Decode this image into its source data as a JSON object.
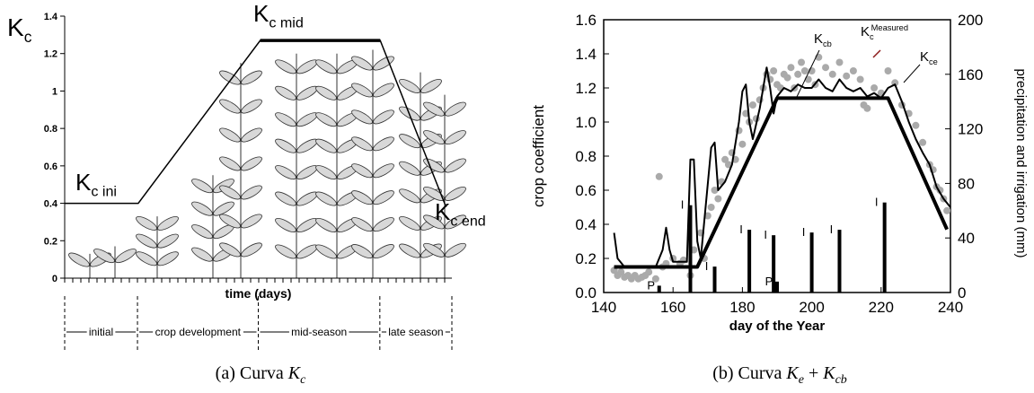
{
  "chart_data": [
    {
      "type": "line",
      "ylabel": {
        "main": "K",
        "sub": "c"
      },
      "xlabel": "time (days)",
      "xlim": [
        0,
        100
      ],
      "ylim": [
        0,
        1.4
      ],
      "yticks": [
        0,
        0.2,
        0.4,
        0.6,
        0.8,
        1,
        1.2,
        1.4
      ],
      "series": [
        {
          "color": "#000000",
          "x": [
            0,
            19,
            50.5,
            81.5,
            98.5
          ],
          "values": [
            0.4,
            0.4,
            1.27,
            1.27,
            0.38
          ]
        }
      ],
      "annotations": [
        {
          "main": "K",
          "sub": "c ini"
        },
        {
          "main": "K",
          "sub": "c mid"
        },
        {
          "main": "K",
          "sub": "c end"
        }
      ],
      "stage_bounds": [
        0,
        18.8,
        50,
        81.4,
        100
      ],
      "stages": [
        "initial",
        "crop development",
        "mid-season",
        "late season"
      ],
      "caption": {
        "prefix": "(a) Curva",
        "terms": [
          {
            "main": "K",
            "sub": "c"
          }
        ]
      }
    },
    {
      "type": "combo",
      "xlabel": "day of the Year",
      "ylabel": "crop coefficient",
      "y2label": "precipitation and irrigation (mm)",
      "xlim": [
        140,
        240
      ],
      "xticks": [
        140,
        160,
        180,
        200,
        220,
        240
      ],
      "ylim": [
        0,
        1.6
      ],
      "yticks": [
        {
          "value": 0,
          "label": "0.0"
        },
        0.2,
        0.4,
        0.6,
        0.8,
        {
          "value": 1,
          "label": "1.0"
        },
        1.2,
        1.4,
        1.6
      ],
      "y2lim": [
        0,
        200
      ],
      "y2ticks": [
        0,
        40,
        80,
        120,
        160,
        200
      ],
      "series": [
        {
          "type": "scatter",
          "color": "#aaaaaa",
          "x": [
            143,
            144,
            145,
            146,
            147,
            148,
            149,
            150,
            151,
            152,
            153,
            155,
            156,
            157,
            158,
            160,
            162,
            163,
            165,
            166,
            168,
            169,
            170,
            171,
            172,
            173,
            174,
            175,
            176,
            177,
            178,
            179,
            180,
            181,
            182,
            183,
            184,
            185,
            186,
            187,
            188,
            189,
            190,
            191,
            192,
            193,
            194,
            195,
            196,
            197,
            198,
            199,
            200,
            201,
            202,
            204,
            206,
            208,
            210,
            212,
            214,
            215,
            216,
            218,
            220,
            222,
            224,
            226,
            228,
            230,
            232,
            234,
            235,
            236,
            237,
            238,
            239
          ],
          "values": [
            0.13,
            0.1,
            0.12,
            0.09,
            0.1,
            0.08,
            0.1,
            0.08,
            0.09,
            0.1,
            0.12,
            0.08,
            0.68,
            0.15,
            0.17,
            0.2,
            0.17,
            0.19,
            0.1,
            0.25,
            0.35,
            0.2,
            0.45,
            0.5,
            0.6,
            0.55,
            0.65,
            0.78,
            0.75,
            0.82,
            0.78,
            0.95,
            0.87,
            1.05,
            1.0,
            1.1,
            1.02,
            1.13,
            1.2,
            1.28,
            1.25,
            1.3,
            1.22,
            1.2,
            1.28,
            1.26,
            1.32,
            1.2,
            1.28,
            1.35,
            1.3,
            1.25,
            1.3,
            1.22,
            1.38,
            1.32,
            1.28,
            1.35,
            1.27,
            1.3,
            1.25,
            1.1,
            1.08,
            1.2,
            1.17,
            1.3,
            1.23,
            1.1,
            1.05,
            0.98,
            0.88,
            0.75,
            0.72,
            0.62,
            0.6,
            0.55,
            0.48
          ]
        },
        {
          "type": "line",
          "color": "#000000",
          "width": 4,
          "x": [
            143,
            167,
            190,
            222,
            239
          ],
          "values": [
            0.15,
            0.15,
            1.14,
            1.14,
            0.37
          ]
        },
        {
          "type": "line",
          "color": "#000000",
          "width": 2,
          "x": [
            143,
            144,
            146,
            155,
            157,
            158,
            159,
            160,
            164,
            165,
            166,
            167,
            168,
            171,
            172,
            173,
            175,
            177,
            179,
            180,
            181,
            182,
            183,
            185,
            187,
            188,
            189,
            190,
            192,
            194,
            196,
            198,
            200,
            202,
            204,
            206,
            208,
            210,
            212,
            214,
            216,
            218,
            220,
            222,
            224,
            226,
            228,
            230,
            232,
            234,
            236,
            238,
            240
          ],
          "values": [
            0.35,
            0.2,
            0.15,
            0.15,
            0.25,
            0.38,
            0.25,
            0.18,
            0.18,
            0.78,
            0.78,
            0.3,
            0.2,
            0.85,
            0.88,
            0.6,
            0.65,
            0.75,
            1.0,
            1.18,
            1.22,
            1.0,
            0.9,
            1.08,
            1.32,
            1.2,
            1.05,
            1.15,
            1.2,
            1.18,
            1.22,
            1.2,
            1.2,
            1.25,
            1.2,
            1.18,
            1.25,
            1.2,
            1.18,
            1.2,
            1.15,
            1.17,
            1.14,
            1.2,
            1.22,
            1.12,
            1.0,
            0.9,
            0.82,
            0.75,
            0.62,
            0.55,
            0.5
          ]
        },
        {
          "type": "bar",
          "axis": "y2",
          "color": "#000000",
          "x": [
            156,
            165,
            172,
            182,
            189,
            190,
            200,
            208,
            221
          ],
          "values": [
            5,
            64,
            19,
            46,
            42,
            8,
            44,
            46,
            66
          ],
          "labels": [
            "P",
            "I",
            "I",
            "I",
            "I",
            "P",
            "I",
            "I",
            "I"
          ]
        }
      ],
      "annotations": [
        {
          "main": "K",
          "sub": "cb"
        },
        {
          "main": "K",
          "sub": "c",
          "sup": "Measured"
        },
        {
          "main": "K",
          "sub": "ce"
        }
      ],
      "caption": {
        "prefix": "(b) Curva",
        "terms": [
          {
            "main": "K",
            "sub": "e"
          },
          {
            "main": "K",
            "sub": "cb"
          }
        ],
        "joiner": "+"
      }
    }
  ]
}
